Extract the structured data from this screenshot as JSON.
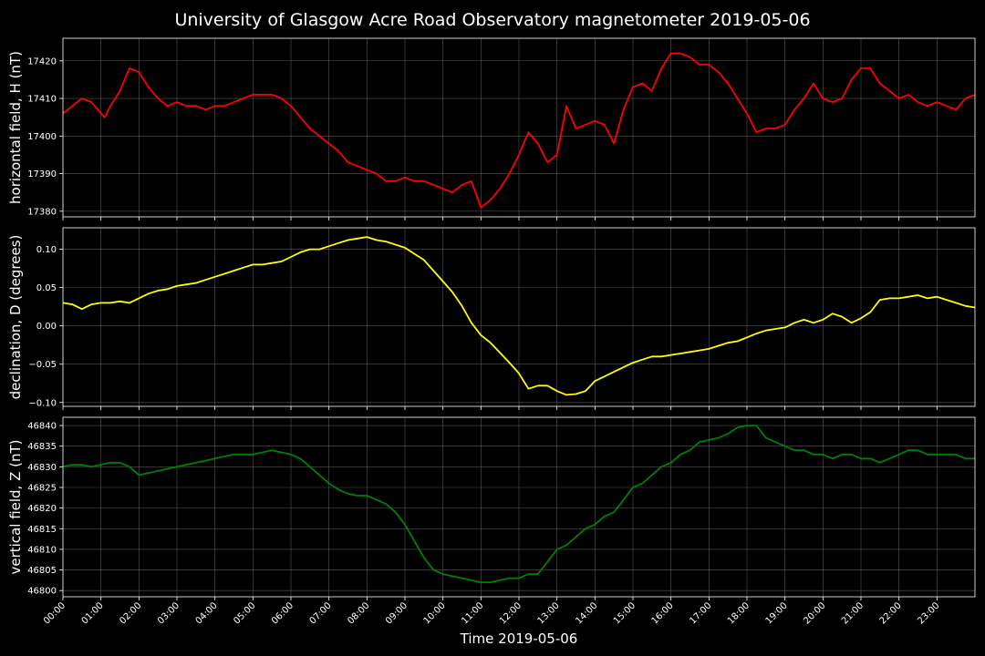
{
  "chart_data": {
    "type": "line",
    "title": "University of Glasgow Acre Road Observatory magnetometer 2019-05-06",
    "xlabel": "Time 2019-05-06",
    "x_ticks": [
      "00:00",
      "01:00",
      "02:00",
      "03:00",
      "04:00",
      "05:00",
      "06:00",
      "07:00",
      "08:00",
      "09:00",
      "10:00",
      "11:00",
      "12:00",
      "13:00",
      "14:00",
      "15:00",
      "16:00",
      "17:00",
      "18:00",
      "19:00",
      "20:00",
      "21:00",
      "22:00",
      "23:00"
    ],
    "xlim": [
      0,
      24
    ],
    "grid": true,
    "panels": [
      {
        "name": "horizontal",
        "ylabel": "horizontal field, H (nT)",
        "color": "#ff0000",
        "ylim": [
          17378.5,
          17426
        ],
        "yticks": [
          17380,
          17390,
          17400,
          17410,
          17420
        ],
        "ytick_labels": [
          "17380",
          "17390",
          "17400",
          "17410",
          "17420"
        ],
        "x": [
          0,
          0.25,
          0.5,
          0.75,
          1.0,
          1.1,
          1.25,
          1.5,
          1.75,
          2.0,
          2.25,
          2.5,
          2.75,
          3.0,
          3.25,
          3.5,
          3.75,
          4.0,
          4.25,
          4.5,
          4.75,
          5.0,
          5.25,
          5.5,
          5.75,
          6.0,
          6.25,
          6.5,
          6.75,
          7.0,
          7.25,
          7.5,
          7.75,
          8.0,
          8.25,
          8.5,
          8.75,
          9.0,
          9.25,
          9.5,
          9.75,
          10.0,
          10.25,
          10.5,
          10.75,
          11.0,
          11.25,
          11.5,
          11.75,
          12.0,
          12.25,
          12.5,
          12.75,
          13.0,
          13.25,
          13.5,
          13.75,
          14.0,
          14.25,
          14.5,
          14.75,
          15.0,
          15.25,
          15.5,
          15.75,
          16.0,
          16.25,
          16.5,
          16.75,
          17.0,
          17.25,
          17.5,
          17.75,
          18.0,
          18.25,
          18.5,
          18.75,
          19.0,
          19.25,
          19.5,
          19.75,
          20.0,
          20.25,
          20.5,
          20.75,
          21.0,
          21.25,
          21.5,
          21.75,
          22.0,
          22.25,
          22.5,
          22.75,
          23.0,
          23.25,
          23.5,
          23.75,
          24.0
        ],
        "y": [
          17406,
          17408,
          17410,
          17409,
          17406,
          17405,
          17408,
          17412,
          17418,
          17417,
          17413,
          17410,
          17408,
          17409,
          17408,
          17408,
          17407,
          17408,
          17408,
          17409,
          17410,
          17411,
          17411,
          17411,
          17410,
          17408,
          17405,
          17402,
          17400,
          17398,
          17396,
          17393,
          17392,
          17391,
          17390,
          17388,
          17388,
          17389,
          17388,
          17388,
          17387,
          17386,
          17385,
          17387,
          17388,
          17381,
          17383,
          17386,
          17390,
          17395,
          17401,
          17398,
          17393,
          17395,
          17408,
          17402,
          17403,
          17404,
          17403,
          17398,
          17407,
          17413,
          17414,
          17412,
          17418,
          17422,
          17422,
          17421,
          17419,
          17419,
          17417,
          17414,
          17410,
          17406,
          17401,
          17402,
          17402,
          17403,
          17407,
          17410,
          17414,
          17410,
          17409,
          17410,
          17415,
          17418,
          17418,
          17414,
          17412,
          17410,
          17411,
          17409,
          17408,
          17409,
          17408,
          17407,
          17410,
          17411
        ]
      },
      {
        "name": "declination",
        "ylabel": "declination, D (degrees)",
        "color": "#ffff00",
        "ylim": [
          -0.105,
          0.128
        ],
        "yticks": [
          -0.1,
          -0.05,
          0.0,
          0.05,
          0.1
        ],
        "ytick_labels": [
          "−0.10",
          "−0.05",
          "0.00",
          "0.05",
          "0.10"
        ],
        "x": [
          0,
          0.25,
          0.5,
          0.75,
          1.0,
          1.25,
          1.5,
          1.75,
          2.0,
          2.25,
          2.5,
          2.75,
          3.0,
          3.25,
          3.5,
          3.75,
          4.0,
          4.25,
          4.5,
          4.75,
          5.0,
          5.25,
          5.5,
          5.75,
          6.0,
          6.25,
          6.5,
          6.75,
          7.0,
          7.25,
          7.5,
          7.75,
          8.0,
          8.25,
          8.5,
          8.75,
          9.0,
          9.25,
          9.5,
          9.75,
          10.0,
          10.25,
          10.5,
          10.75,
          11.0,
          11.25,
          11.5,
          11.75,
          12.0,
          12.25,
          12.5,
          12.75,
          13.0,
          13.25,
          13.5,
          13.75,
          14.0,
          14.25,
          14.5,
          14.75,
          15.0,
          15.25,
          15.5,
          15.75,
          16.0,
          16.25,
          16.5,
          16.75,
          17.0,
          17.25,
          17.5,
          17.75,
          18.0,
          18.25,
          18.5,
          18.75,
          19.0,
          19.25,
          19.5,
          19.75,
          20.0,
          20.25,
          20.5,
          20.75,
          21.0,
          21.25,
          21.5,
          21.75,
          22.0,
          22.25,
          22.5,
          22.75,
          23.0,
          23.25,
          23.5,
          23.75,
          24.0
        ],
        "y": [
          0.03,
          0.028,
          0.022,
          0.028,
          0.03,
          0.03,
          0.032,
          0.03,
          0.036,
          0.042,
          0.046,
          0.048,
          0.052,
          0.054,
          0.056,
          0.06,
          0.064,
          0.068,
          0.072,
          0.076,
          0.08,
          0.08,
          0.082,
          0.084,
          0.09,
          0.096,
          0.1,
          0.1,
          0.104,
          0.108,
          0.112,
          0.114,
          0.116,
          0.112,
          0.11,
          0.106,
          0.102,
          0.094,
          0.086,
          0.072,
          0.058,
          0.044,
          0.026,
          0.004,
          -0.012,
          -0.022,
          -0.035,
          -0.048,
          -0.062,
          -0.082,
          -0.078,
          -0.078,
          -0.085,
          -0.09,
          -0.089,
          -0.085,
          -0.072,
          -0.066,
          -0.06,
          -0.054,
          -0.048,
          -0.044,
          -0.04,
          -0.04,
          -0.038,
          -0.036,
          -0.034,
          -0.032,
          -0.03,
          -0.026,
          -0.022,
          -0.02,
          -0.015,
          -0.01,
          -0.006,
          -0.004,
          -0.002,
          0.004,
          0.008,
          0.004,
          0.008,
          0.016,
          0.012,
          0.004,
          0.01,
          0.018,
          0.034,
          0.036,
          0.036,
          0.038,
          0.04,
          0.036,
          0.038,
          0.034,
          0.03,
          0.026,
          0.024
        ]
      },
      {
        "name": "vertical",
        "ylabel": "vertical field, Z (nT)",
        "color": "#008000",
        "ylim": [
          46798.5,
          46842
        ],
        "yticks": [
          46800,
          46805,
          46810,
          46815,
          46820,
          46825,
          46830,
          46835,
          46840
        ],
        "ytick_labels": [
          "46800",
          "46805",
          "46810",
          "46815",
          "46820",
          "46825",
          "46830",
          "46835",
          "46840"
        ],
        "x": [
          0,
          0.25,
          0.5,
          0.75,
          1.0,
          1.25,
          1.5,
          1.75,
          2.0,
          2.25,
          2.5,
          2.75,
          3.0,
          3.25,
          3.5,
          3.75,
          4.0,
          4.25,
          4.5,
          4.75,
          5.0,
          5.25,
          5.5,
          5.75,
          6.0,
          6.25,
          6.5,
          6.75,
          7.0,
          7.25,
          7.5,
          7.75,
          8.0,
          8.25,
          8.5,
          8.75,
          9.0,
          9.25,
          9.5,
          9.75,
          10.0,
          10.25,
          10.5,
          10.75,
          11.0,
          11.25,
          11.5,
          11.75,
          12.0,
          12.25,
          12.5,
          12.75,
          13.0,
          13.25,
          13.5,
          13.75,
          14.0,
          14.25,
          14.5,
          14.75,
          15.0,
          15.25,
          15.5,
          15.75,
          16.0,
          16.25,
          16.5,
          16.75,
          17.0,
          17.25,
          17.5,
          17.75,
          18.0,
          18.25,
          18.5,
          18.75,
          19.0,
          19.25,
          19.5,
          19.75,
          20.0,
          20.25,
          20.5,
          20.75,
          21.0,
          21.25,
          21.5,
          21.75,
          22.0,
          22.25,
          22.5,
          22.75,
          23.0,
          23.25,
          23.5,
          23.75,
          24.0
        ],
        "y": [
          46830,
          46830.5,
          46830.5,
          46830,
          46830.5,
          46831,
          46831,
          46830,
          46828,
          46828.5,
          46829,
          46829.5,
          46830,
          46830.5,
          46831,
          46831.5,
          46832,
          46832.5,
          46833,
          46833,
          46833,
          46833.5,
          46834,
          46833.5,
          46833,
          46832,
          46830,
          46828,
          46826,
          46824.5,
          46823.5,
          46823,
          46823,
          46822,
          46821,
          46819,
          46816,
          46812,
          46808,
          46805,
          46804,
          46803.5,
          46803,
          46802.5,
          46802,
          46802,
          46802.5,
          46803,
          46803,
          46804,
          46804,
          46807,
          46810,
          46811,
          46813,
          46815,
          46816,
          46818,
          46819,
          46822,
          46825,
          46826,
          46828,
          46830,
          46831,
          46833,
          46834,
          46836,
          46836.5,
          46837,
          46838,
          46839.5,
          46840,
          46840,
          46837,
          46836,
          46835,
          46834,
          46834,
          46833,
          46833,
          46832,
          46833,
          46833,
          46832,
          46832,
          46831,
          46832,
          46833,
          46834,
          46834,
          46833,
          46833,
          46833,
          46833,
          46832,
          46832
        ]
      }
    ]
  }
}
